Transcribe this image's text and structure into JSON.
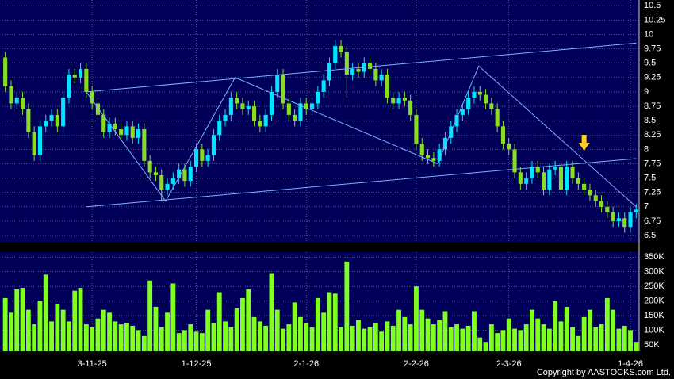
{
  "chart_data": [
    {
      "type": "candlestick",
      "up_color": "#00e5ff",
      "down_color": "#88dd22",
      "background": "#000058",
      "grid": true,
      "xlim": [
        -0.5,
        109.5
      ],
      "ylim": [
        6.39,
        10.6
      ],
      "yticks": [
        6.5,
        6.75,
        7,
        7.25,
        7.5,
        7.75,
        8,
        8.25,
        8.5,
        8.75,
        9,
        9.25,
        9.5,
        9.75,
        10,
        10.25,
        10.5
      ],
      "candles": [
        [
          9.6,
          9.7,
          9.0,
          9.1
        ],
        [
          9.1,
          9.2,
          8.7,
          8.8
        ],
        [
          8.8,
          9.0,
          8.7,
          8.9
        ],
        [
          8.9,
          9.0,
          8.6,
          8.7
        ],
        [
          8.7,
          8.8,
          8.2,
          8.3
        ],
        [
          8.3,
          8.4,
          7.8,
          7.9
        ],
        [
          7.9,
          8.5,
          7.8,
          8.4
        ],
        [
          8.4,
          8.6,
          8.3,
          8.5
        ],
        [
          8.5,
          8.7,
          8.4,
          8.6
        ],
        [
          8.6,
          8.7,
          8.3,
          8.4
        ],
        [
          8.4,
          9.0,
          8.3,
          8.9
        ],
        [
          8.9,
          9.4,
          8.8,
          9.3
        ],
        [
          9.3,
          9.4,
          9.15,
          9.25
        ],
        [
          9.25,
          9.5,
          9.15,
          9.4
        ],
        [
          9.4,
          9.5,
          8.9,
          9.0
        ],
        [
          9.0,
          9.1,
          8.7,
          8.8
        ],
        [
          8.8,
          8.9,
          8.5,
          8.6
        ],
        [
          8.6,
          8.7,
          8.2,
          8.3
        ],
        [
          8.3,
          8.55,
          8.2,
          8.45
        ],
        [
          8.45,
          8.55,
          8.25,
          8.35
        ],
        [
          8.35,
          8.45,
          8.15,
          8.25
        ],
        [
          8.25,
          8.5,
          8.15,
          8.4
        ],
        [
          8.4,
          8.5,
          8.1,
          8.2
        ],
        [
          8.2,
          8.45,
          8.1,
          8.35
        ],
        [
          8.35,
          8.45,
          7.7,
          7.8
        ],
        [
          7.8,
          7.9,
          7.5,
          7.6
        ],
        [
          7.6,
          7.7,
          7.45,
          7.55
        ],
        [
          7.55,
          7.65,
          7.1,
          7.3
        ],
        [
          7.3,
          7.5,
          7.2,
          7.4
        ],
        [
          7.4,
          7.6,
          7.3,
          7.5
        ],
        [
          7.5,
          7.75,
          7.4,
          7.65
        ],
        [
          7.65,
          7.75,
          7.35,
          7.45
        ],
        [
          7.45,
          7.8,
          7.35,
          7.7
        ],
        [
          7.7,
          8.1,
          7.6,
          8.0
        ],
        [
          8.0,
          8.1,
          7.7,
          7.8
        ],
        [
          7.8,
          8.0,
          7.7,
          7.9
        ],
        [
          7.9,
          8.35,
          7.8,
          8.25
        ],
        [
          8.25,
          8.6,
          8.15,
          8.5
        ],
        [
          8.5,
          8.7,
          8.4,
          8.6
        ],
        [
          8.6,
          9.0,
          8.5,
          8.9
        ],
        [
          8.9,
          9.0,
          8.7,
          8.8
        ],
        [
          8.8,
          8.9,
          8.6,
          8.7
        ],
        [
          8.7,
          8.85,
          8.6,
          8.75
        ],
        [
          8.75,
          8.85,
          8.4,
          8.5
        ],
        [
          8.5,
          8.6,
          8.3,
          8.4
        ],
        [
          8.4,
          8.7,
          8.3,
          8.6
        ],
        [
          8.6,
          9.1,
          8.5,
          9.0
        ],
        [
          9.0,
          9.4,
          8.9,
          9.3
        ],
        [
          9.3,
          9.4,
          8.7,
          8.8
        ],
        [
          8.8,
          8.9,
          8.5,
          8.6
        ],
        [
          8.6,
          8.7,
          8.4,
          8.5
        ],
        [
          8.5,
          8.9,
          8.4,
          8.8
        ],
        [
          8.8,
          8.9,
          8.6,
          8.7
        ],
        [
          8.7,
          8.9,
          8.6,
          8.8
        ],
        [
          8.8,
          9.1,
          8.7,
          9.0
        ],
        [
          9.0,
          9.3,
          8.9,
          9.2
        ],
        [
          9.2,
          9.6,
          9.1,
          9.5
        ],
        [
          9.5,
          9.9,
          9.4,
          9.8
        ],
        [
          9.8,
          9.9,
          9.6,
          9.7
        ],
        [
          9.7,
          9.8,
          8.9,
          9.3
        ],
        [
          9.3,
          9.5,
          9.2,
          9.4
        ],
        [
          9.4,
          9.5,
          9.25,
          9.35
        ],
        [
          9.35,
          9.6,
          9.25,
          9.5
        ],
        [
          9.5,
          9.6,
          9.3,
          9.4
        ],
        [
          9.4,
          9.5,
          9.1,
          9.2
        ],
        [
          9.2,
          9.4,
          9.1,
          9.3
        ],
        [
          9.3,
          9.4,
          8.8,
          8.9
        ],
        [
          8.9,
          9.0,
          8.7,
          8.8
        ],
        [
          8.8,
          9.0,
          8.7,
          8.9
        ],
        [
          8.9,
          9.0,
          8.75,
          8.85
        ],
        [
          8.85,
          8.95,
          8.5,
          8.6
        ],
        [
          8.6,
          8.7,
          8.0,
          8.1
        ],
        [
          8.1,
          8.2,
          7.8,
          7.9
        ],
        [
          7.9,
          8.0,
          7.75,
          7.85
        ],
        [
          7.85,
          7.95,
          7.7,
          7.8
        ],
        [
          7.8,
          8.1,
          7.7,
          8.0
        ],
        [
          8.0,
          8.3,
          7.9,
          8.2
        ],
        [
          8.2,
          8.5,
          8.1,
          8.4
        ],
        [
          8.4,
          8.7,
          8.3,
          8.6
        ],
        [
          8.6,
          8.8,
          8.5,
          8.7
        ],
        [
          8.7,
          9.0,
          8.6,
          8.9
        ],
        [
          8.9,
          9.1,
          8.8,
          9.0
        ],
        [
          9.0,
          9.1,
          8.85,
          8.95
        ],
        [
          8.95,
          9.05,
          8.7,
          8.8
        ],
        [
          8.8,
          8.9,
          8.6,
          8.7
        ],
        [
          8.7,
          8.8,
          8.3,
          8.4
        ],
        [
          8.4,
          8.5,
          8.0,
          8.1
        ],
        [
          8.1,
          8.2,
          7.9,
          8.0
        ],
        [
          8.0,
          8.1,
          7.5,
          7.6
        ],
        [
          7.6,
          7.7,
          7.3,
          7.4
        ],
        [
          7.4,
          7.6,
          7.3,
          7.5
        ],
        [
          7.5,
          7.8,
          7.4,
          7.7
        ],
        [
          7.7,
          7.8,
          7.5,
          7.6
        ],
        [
          7.6,
          7.7,
          7.2,
          7.3
        ],
        [
          7.3,
          7.75,
          7.2,
          7.65
        ],
        [
          7.65,
          7.8,
          7.55,
          7.7
        ],
        [
          7.7,
          7.8,
          7.2,
          7.3
        ],
        [
          7.3,
          7.8,
          7.2,
          7.7
        ],
        [
          7.7,
          7.8,
          7.4,
          7.5
        ],
        [
          7.5,
          7.6,
          7.3,
          7.4
        ],
        [
          7.4,
          7.5,
          7.2,
          7.3
        ],
        [
          7.3,
          7.4,
          7.1,
          7.2
        ],
        [
          7.2,
          7.3,
          7.0,
          7.1
        ],
        [
          7.1,
          7.2,
          6.9,
          7.0
        ],
        [
          7.0,
          7.1,
          6.8,
          6.9
        ],
        [
          6.9,
          7.0,
          6.65,
          6.75
        ],
        [
          6.75,
          6.9,
          6.65,
          6.8
        ],
        [
          6.8,
          6.9,
          6.55,
          6.65
        ],
        [
          6.65,
          7.0,
          6.55,
          6.9
        ],
        [
          6.9,
          7.05,
          6.8,
          6.95
        ]
      ],
      "line_color": "#7fb0ff",
      "lines": [
        {
          "x": [
            14,
            109
          ],
          "y": [
            9.0,
            9.85
          ]
        },
        {
          "x": [
            14,
            109
          ],
          "y": [
            7.0,
            7.84
          ]
        },
        {
          "x": [
            14,
            27.7,
            39.7,
            74.7,
            81.8,
            109
          ],
          "y": [
            9.0,
            7.1,
            9.25,
            7.75,
            9.45,
            7.0
          ]
        }
      ],
      "arrow": {
        "x": 100,
        "y": 7.95,
        "color": "#ffcc22"
      }
    },
    {
      "type": "bar",
      "color": "#80ff20",
      "background": "#000058",
      "grid": true,
      "ylim": [
        28000,
        367000
      ],
      "yticks": [
        {
          "value": 50000,
          "label": "50K"
        },
        {
          "value": 100000,
          "label": "100K"
        },
        {
          "value": 150000,
          "label": "150K"
        },
        {
          "value": 200000,
          "label": "200K"
        },
        {
          "value": 250000,
          "label": "250K"
        },
        {
          "value": 300000,
          "label": "300K"
        },
        {
          "value": 350000,
          "label": "350K"
        }
      ],
      "xticks": [
        {
          "value": 15,
          "label": "3-11-25"
        },
        {
          "value": 33,
          "label": "1-12-25"
        },
        {
          "value": 52,
          "label": "2-1-26"
        },
        {
          "value": 71,
          "label": "2-2-26"
        },
        {
          "value": 87,
          "label": "2-3-26"
        },
        {
          "value": 108,
          "label": "1-4-26"
        }
      ],
      "values": [
        210000,
        160000,
        240000,
        245000,
        170000,
        120000,
        200000,
        290000,
        130000,
        190000,
        170000,
        130000,
        235000,
        245000,
        120000,
        110000,
        140000,
        170000,
        160000,
        130000,
        120000,
        125000,
        115000,
        100000,
        80000,
        270000,
        180000,
        110000,
        160000,
        260000,
        90000,
        100000,
        120000,
        95000,
        90000,
        170000,
        125000,
        230000,
        130000,
        110000,
        175000,
        210000,
        240000,
        145000,
        130000,
        115000,
        295000,
        170000,
        105000,
        120000,
        195000,
        145000,
        125000,
        110000,
        210000,
        160000,
        230000,
        225000,
        110000,
        335000,
        115000,
        135000,
        105000,
        110000,
        125000,
        95000,
        130000,
        115000,
        170000,
        145000,
        120000,
        250000,
        170000,
        140000,
        120000,
        135000,
        165000,
        110000,
        120000,
        105000,
        115000,
        165000,
        75000,
        60000,
        120000,
        90000,
        100000,
        140000,
        105000,
        100000,
        120000,
        170000,
        140000,
        120000,
        105000,
        200000,
        130000,
        180000,
        110000,
        80000,
        145000,
        170000,
        110000,
        120000,
        210000,
        170000,
        105000,
        115000,
        100000,
        60000
      ]
    }
  ],
  "footer": "Copyright by AASTOCKS.com Ltd."
}
